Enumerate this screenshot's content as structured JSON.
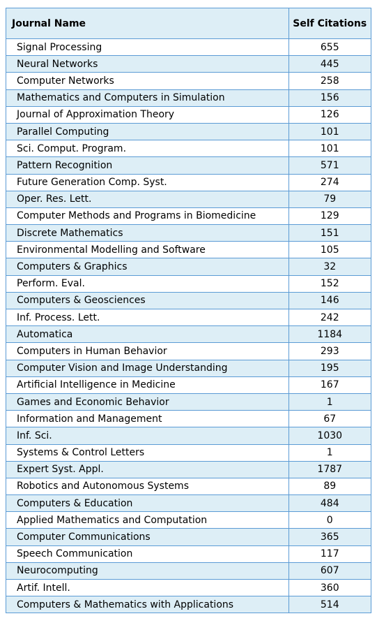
{
  "table": {
    "headers": [
      "Journal Name",
      "Self Citations"
    ],
    "rows": [
      [
        "Signal Processing",
        "655"
      ],
      [
        "Neural Networks",
        "445"
      ],
      [
        "Computer Networks",
        "258"
      ],
      [
        "Mathematics and Computers in Simulation",
        "156"
      ],
      [
        "Journal of Approximation Theory",
        "126"
      ],
      [
        "Parallel Computing",
        "101"
      ],
      [
        "Sci. Comput. Program.",
        "101"
      ],
      [
        "Pattern Recognition",
        "571"
      ],
      [
        "Future Generation Comp. Syst.",
        "274"
      ],
      [
        "Oper. Res. Lett.",
        "79"
      ],
      [
        "Computer Methods and Programs in Biomedicine",
        "129"
      ],
      [
        "Discrete Mathematics",
        "151"
      ],
      [
        "Environmental Modelling and Software",
        "105"
      ],
      [
        "Computers & Graphics",
        "32"
      ],
      [
        "Perform. Eval.",
        "152"
      ],
      [
        "Computers & Geosciences",
        "146"
      ],
      [
        "Inf. Process. Lett.",
        "242"
      ],
      [
        "Automatica",
        "1184"
      ],
      [
        "Computers in Human Behavior",
        "293"
      ],
      [
        "Computer Vision and Image Understanding",
        "195"
      ],
      [
        "Artificial Intelligence in Medicine",
        "167"
      ],
      [
        "Games and Economic Behavior",
        "1"
      ],
      [
        "Information and Management",
        "67"
      ],
      [
        "Inf. Sci.",
        "1030"
      ],
      [
        "Systems & Control Letters",
        "1"
      ],
      [
        "Expert Syst. Appl.",
        "1787"
      ],
      [
        "Robotics and Autonomous Systems",
        "89"
      ],
      [
        "Computers & Education",
        "484"
      ],
      [
        "Applied Mathematics and Computation",
        "0"
      ],
      [
        "Computer Communications",
        "365"
      ],
      [
        "Speech Communication",
        "117"
      ],
      [
        "Neurocomputing",
        "607"
      ],
      [
        "Artif. Intell.",
        "360"
      ],
      [
        "Computers & Mathematics with Applications",
        "514"
      ]
    ]
  },
  "colors": {
    "border": "#5b9bd5",
    "band": "#ddeef6",
    "background": "#ffffff"
  }
}
